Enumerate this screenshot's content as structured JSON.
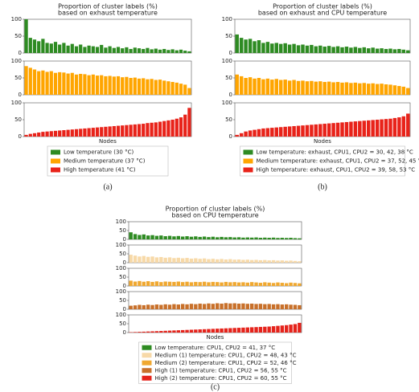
{
  "chart_data": [
    {
      "type": "bar",
      "title": "Proportion of cluster labels (%)",
      "subtitle": "based on exhaust temperature",
      "xlabel": "Nodes",
      "caption": "(a)",
      "ylim": [
        0,
        100
      ],
      "yticks": [
        0,
        50,
        100
      ],
      "series": [
        {
          "name": "Low temperature (30 °C)",
          "color": "#2e8b22",
          "values": [
            100,
            45,
            40,
            35,
            42,
            30,
            28,
            33,
            25,
            30,
            22,
            27,
            20,
            25,
            18,
            22,
            20,
            18,
            24,
            16,
            20,
            15,
            18,
            14,
            17,
            12,
            16,
            14,
            12,
            15,
            11,
            13,
            10,
            12,
            9,
            11,
            8,
            10,
            7,
            5
          ]
        },
        {
          "name": "Medium temperature (37 °C)",
          "color": "#ffa500",
          "values": [
            85,
            80,
            75,
            70,
            72,
            68,
            70,
            65,
            67,
            66,
            63,
            65,
            60,
            62,
            61,
            58,
            60,
            57,
            58,
            55,
            56,
            54,
            55,
            52,
            53,
            50,
            51,
            48,
            49,
            46,
            47,
            44,
            45,
            42,
            40,
            38,
            36,
            33,
            30,
            20
          ]
        },
        {
          "name": "High temperature  (41 °C)",
          "color": "#e8231a",
          "values": [
            5,
            8,
            10,
            12,
            14,
            15,
            16,
            17,
            18,
            19,
            20,
            21,
            22,
            23,
            24,
            25,
            26,
            27,
            28,
            29,
            30,
            31,
            32,
            33,
            34,
            35,
            36,
            37,
            38,
            40,
            41,
            42,
            44,
            46,
            48,
            50,
            53,
            57,
            65,
            85
          ]
        }
      ]
    },
    {
      "type": "bar",
      "title": "Proportion of cluster labels (%)",
      "subtitle": "based on exhaust and CPU temperature",
      "xlabel": "Nodes",
      "caption": "(b)",
      "ylim": [
        0,
        100
      ],
      "yticks": [
        0,
        50,
        100
      ],
      "series": [
        {
          "name": "Low temperature: exhaust, CPU1, CPU2 = 30, 42, 38 °C",
          "color": "#2e8b22",
          "values": [
            55,
            45,
            40,
            42,
            35,
            38,
            30,
            33,
            28,
            30,
            27,
            29,
            25,
            27,
            23,
            25,
            22,
            24,
            20,
            22,
            19,
            21,
            18,
            20,
            17,
            19,
            16,
            18,
            15,
            17,
            14,
            16,
            13,
            14,
            12,
            13,
            11,
            12,
            10,
            8
          ]
        },
        {
          "name": "Medium temperature: exhaust, CPU1, CPU2 = 37, 52, 45 °C",
          "color": "#ffa500",
          "values": [
            60,
            55,
            50,
            52,
            48,
            50,
            46,
            48,
            45,
            47,
            44,
            45,
            42,
            44,
            41,
            42,
            40,
            41,
            39,
            40,
            38,
            39,
            37,
            38,
            36,
            37,
            35,
            36,
            34,
            35,
            33,
            34,
            32,
            33,
            31,
            30,
            28,
            26,
            24,
            20
          ]
        },
        {
          "name": "High temperature: exhaust, CPU1, CPU2 = 39, 58, 53 °C",
          "color": "#e8231a",
          "values": [
            5,
            10,
            15,
            18,
            20,
            22,
            24,
            25,
            26,
            27,
            28,
            29,
            30,
            31,
            32,
            33,
            34,
            35,
            36,
            37,
            38,
            39,
            40,
            41,
            42,
            43,
            44,
            45,
            46,
            47,
            48,
            49,
            50,
            51,
            52,
            53,
            55,
            57,
            60,
            68
          ]
        }
      ]
    },
    {
      "type": "bar",
      "title": "Proportion of cluster labels (%)",
      "subtitle": "based on CPU temperature",
      "xlabel": "Nodes",
      "caption": "(c)",
      "ylim": [
        0,
        100
      ],
      "yticks": [
        0,
        50,
        100
      ],
      "series": [
        {
          "name": "Low temperature: CPU1, CPU2 = 41, 37 °C",
          "color": "#2e8b22",
          "values": [
            40,
            30,
            25,
            28,
            22,
            24,
            20,
            22,
            18,
            20,
            17,
            19,
            16,
            18,
            15,
            17,
            14,
            16,
            13,
            15,
            12,
            14,
            12,
            13,
            11,
            12,
            10,
            11,
            10,
            11,
            9,
            10,
            9,
            10,
            8,
            9,
            8,
            9,
            7,
            6
          ]
        },
        {
          "name": "Medium (1) temperature: CPU1, CPU2 = 48, 43 °C",
          "color": "#f7d9a8",
          "values": [
            45,
            40,
            35,
            38,
            33,
            35,
            30,
            32,
            28,
            30,
            26,
            28,
            25,
            27,
            23,
            25,
            22,
            24,
            20,
            22,
            19,
            21,
            18,
            20,
            17,
            18,
            16,
            17,
            15,
            16,
            14,
            15,
            13,
            14,
            12,
            13,
            11,
            12,
            10,
            8
          ]
        },
        {
          "name": "Medium (2) temperature: CPU1, CPU2 = 52, 46 °C",
          "color": "#f0a830",
          "values": [
            30,
            25,
            28,
            24,
            27,
            23,
            26,
            22,
            25,
            24,
            23,
            25,
            22,
            24,
            21,
            23,
            22,
            24,
            21,
            23,
            22,
            20,
            23,
            21,
            22,
            20,
            21,
            19,
            22,
            20,
            18,
            21,
            19,
            17,
            20,
            18,
            16,
            19,
            17,
            15
          ]
        },
        {
          "name": "High (1) temperature: CPU1, CPU2 = 56, 55 °C",
          "color": "#c8702a",
          "values": [
            20,
            22,
            25,
            23,
            26,
            24,
            27,
            25,
            28,
            26,
            29,
            27,
            30,
            28,
            31,
            29,
            32,
            30,
            33,
            31,
            34,
            32,
            35,
            33,
            34,
            32,
            33,
            31,
            32,
            30,
            31,
            29,
            30,
            28,
            29,
            27,
            28,
            26,
            25,
            23
          ]
        },
        {
          "name": "High (2) temperature: CPU1, CPU2 = 60, 55 °C",
          "color": "#e5231b",
          "values": [
            2,
            3,
            4,
            5,
            6,
            7,
            8,
            9,
            10,
            11,
            12,
            13,
            14,
            15,
            16,
            17,
            18,
            19,
            20,
            21,
            22,
            23,
            24,
            25,
            26,
            27,
            28,
            29,
            30,
            31,
            32,
            33,
            34,
            36,
            38,
            40,
            42,
            45,
            48,
            55
          ]
        }
      ]
    }
  ]
}
